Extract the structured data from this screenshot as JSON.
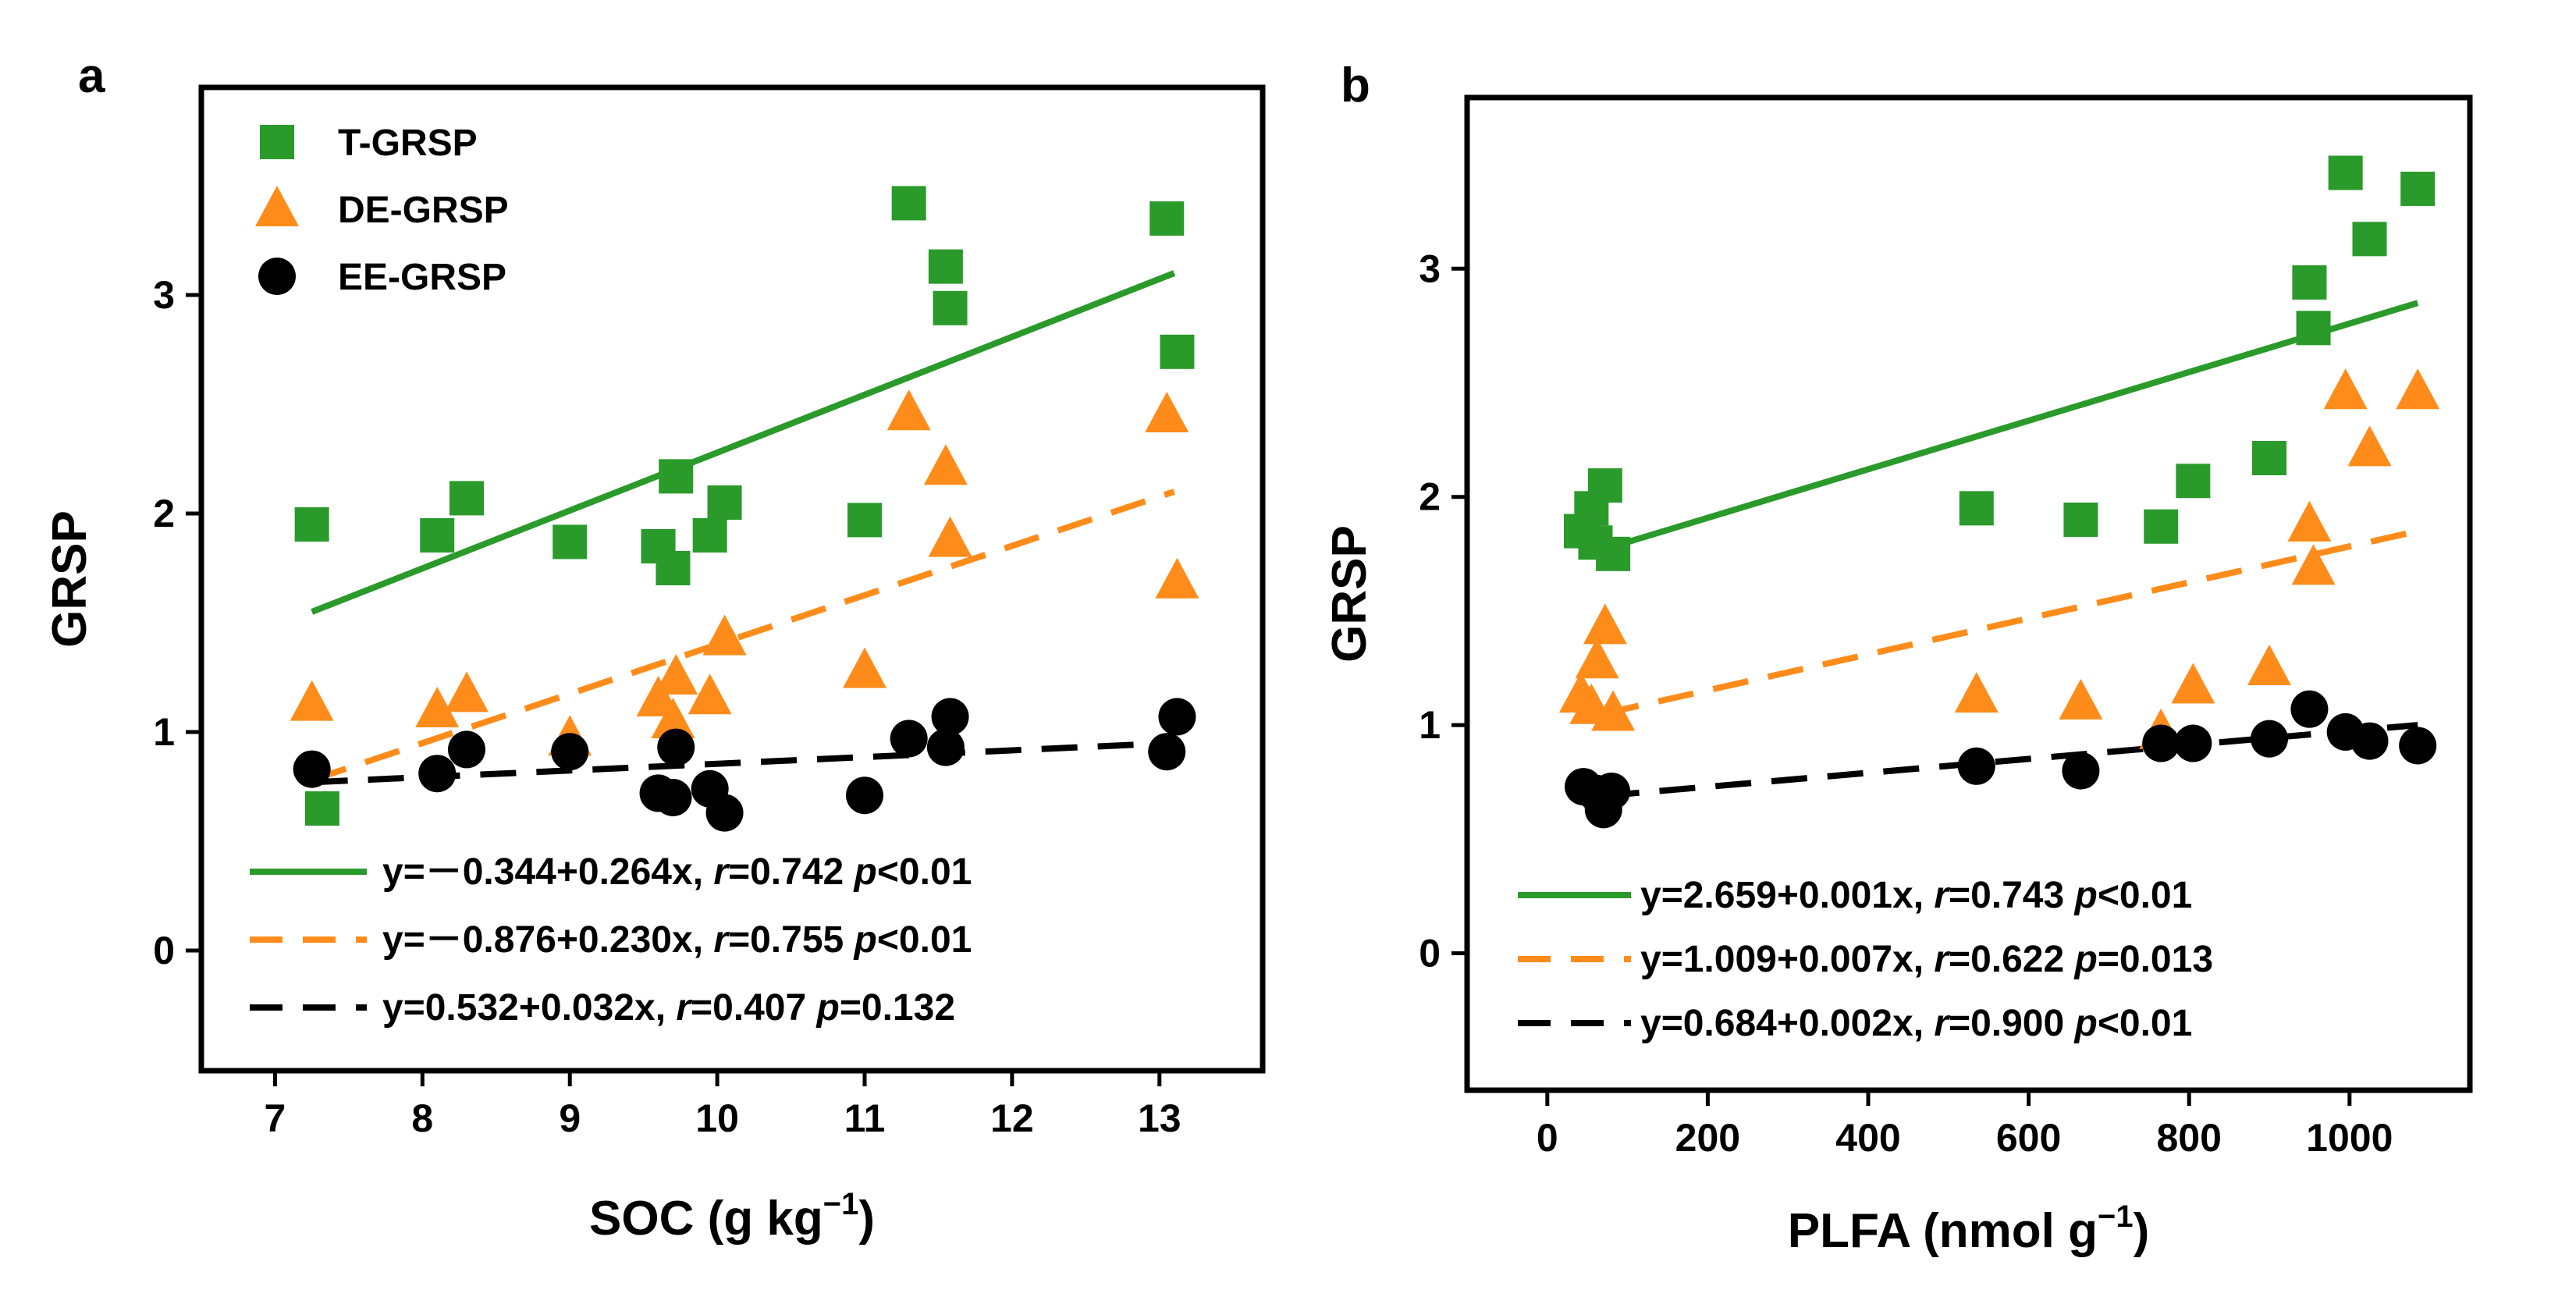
{
  "colors": {
    "t_grsp": "#2a9a2a",
    "de_grsp": "#ff8c1a",
    "ee_grsp": "#000000"
  },
  "chart_data": [
    {
      "panel": "a",
      "type": "scatter",
      "xlabel": "SOC (g kg",
      "xlabel_sup": "−1",
      "xlabel_close": ")",
      "ylabel": "GRSP",
      "xlim": [
        6.5,
        13.7
      ],
      "ylim": [
        -0.55,
        3.95
      ],
      "xticks": [
        7,
        8,
        9,
        10,
        11,
        12,
        13
      ],
      "yticks": [
        0,
        1,
        2,
        3
      ],
      "legend_position": "top-left",
      "series": [
        {
          "name": "T-GRSP",
          "marker": "square",
          "color_key": "t_grsp",
          "points": [
            [
              7.25,
              1.95
            ],
            [
              7.32,
              0.65
            ],
            [
              8.1,
              1.9
            ],
            [
              8.3,
              2.07
            ],
            [
              9.0,
              1.87
            ],
            [
              9.6,
              1.85
            ],
            [
              9.7,
              1.75
            ],
            [
              9.72,
              2.17
            ],
            [
              9.95,
              1.9
            ],
            [
              10.05,
              2.05
            ],
            [
              11.0,
              1.97
            ],
            [
              11.3,
              3.42
            ],
            [
              11.55,
              3.13
            ],
            [
              11.58,
              2.94
            ],
            [
              13.05,
              3.35
            ],
            [
              13.12,
              2.74
            ]
          ]
        },
        {
          "name": "DE-GRSP",
          "marker": "triangle",
          "color_key": "de_grsp",
          "points": [
            [
              7.25,
              1.13
            ],
            [
              8.1,
              1.1
            ],
            [
              8.3,
              1.17
            ],
            [
              9.0,
              0.97
            ],
            [
              9.6,
              1.15
            ],
            [
              9.7,
              1.05
            ],
            [
              9.72,
              1.25
            ],
            [
              9.95,
              1.16
            ],
            [
              10.05,
              1.43
            ],
            [
              11.0,
              1.28
            ],
            [
              11.3,
              2.46
            ],
            [
              11.55,
              2.21
            ],
            [
              11.58,
              1.88
            ],
            [
              13.05,
              2.45
            ],
            [
              13.12,
              1.69
            ]
          ]
        },
        {
          "name": "EE-GRSP",
          "marker": "circle",
          "color_key": "ee_grsp",
          "points": [
            [
              7.25,
              0.83
            ],
            [
              8.1,
              0.81
            ],
            [
              8.3,
              0.92
            ],
            [
              9.0,
              0.91
            ],
            [
              9.6,
              0.72
            ],
            [
              9.7,
              0.7
            ],
            [
              9.72,
              0.93
            ],
            [
              9.95,
              0.74
            ],
            [
              10.05,
              0.63
            ],
            [
              11.0,
              0.71
            ],
            [
              11.3,
              0.97
            ],
            [
              11.55,
              0.93
            ],
            [
              11.58,
              1.07
            ],
            [
              13.05,
              0.91
            ],
            [
              13.12,
              1.07
            ]
          ]
        }
      ],
      "fits": [
        {
          "color_key": "t_grsp",
          "style": "solid",
          "x": [
            7.25,
            13.1
          ],
          "y": [
            1.55,
            3.1
          ],
          "eq_a": "y=－0.344+0.264x, ",
          "eq_r": "r",
          "eq_b": "=0.742 ",
          "eq_p": "p",
          "eq_c": "<0.01"
        },
        {
          "color_key": "de_grsp",
          "style": "dashed",
          "x": [
            7.25,
            13.1
          ],
          "y": [
            0.78,
            2.1
          ],
          "eq_a": "y=－0.876+0.230x, ",
          "eq_r": "r",
          "eq_b": "=0.755 ",
          "eq_p": "p",
          "eq_c": "<0.01"
        },
        {
          "color_key": "ee_grsp",
          "style": "dashed",
          "x": [
            7.25,
            13.1
          ],
          "y": [
            0.77,
            0.95
          ],
          "eq_a": "y=0.532+0.032x, ",
          "eq_r": "r",
          "eq_b": "=0.407 ",
          "eq_p": "p",
          "eq_c": "=0.132"
        }
      ]
    },
    {
      "panel": "b",
      "type": "scatter",
      "xlabel": "PLFA (nmol g",
      "xlabel_sup": "−1",
      "xlabel_close": ")",
      "ylabel": "GRSP",
      "xlim": [
        -100,
        1150
      ],
      "ylim": [
        -0.6,
        3.75
      ],
      "xticks": [
        0,
        200,
        400,
        600,
        800,
        1000
      ],
      "yticks": [
        0,
        1,
        2,
        3
      ],
      "series": [
        {
          "name": "T-GRSP",
          "marker": "square",
          "color_key": "t_grsp",
          "points": [
            [
              42,
              1.85
            ],
            [
              55,
              1.95
            ],
            [
              60,
              1.8
            ],
            [
              72,
              2.05
            ],
            [
              82,
              1.75
            ],
            [
              535,
              1.95
            ],
            [
              665,
              1.9
            ],
            [
              765,
              1.87
            ],
            [
              805,
              2.07
            ],
            [
              900,
              2.17
            ],
            [
              950,
              2.94
            ],
            [
              955,
              2.74
            ],
            [
              995,
              3.42
            ],
            [
              1025,
              3.13
            ],
            [
              1085,
              3.35
            ]
          ]
        },
        {
          "name": "DE-GRSP",
          "marker": "triangle",
          "color_key": "de_grsp",
          "points": [
            [
              42,
              1.13
            ],
            [
              55,
              1.08
            ],
            [
              62,
              1.28
            ],
            [
              72,
              1.43
            ],
            [
              82,
              1.05
            ],
            [
              535,
              1.13
            ],
            [
              665,
              1.1
            ],
            [
              765,
              0.97
            ],
            [
              805,
              1.17
            ],
            [
              900,
              1.25
            ],
            [
              950,
              1.88
            ],
            [
              955,
              1.69
            ],
            [
              995,
              2.46
            ],
            [
              1025,
              2.21
            ],
            [
              1085,
              2.46
            ]
          ]
        },
        {
          "name": "EE-GRSP",
          "marker": "circle",
          "color_key": "ee_grsp",
          "points": [
            [
              45,
              0.73
            ],
            [
              62,
              0.7
            ],
            [
              70,
              0.63
            ],
            [
              80,
              0.71
            ],
            [
              535,
              0.82
            ],
            [
              665,
              0.8
            ],
            [
              765,
              0.92
            ],
            [
              805,
              0.92
            ],
            [
              900,
              0.94
            ],
            [
              950,
              1.07
            ],
            [
              995,
              0.97
            ],
            [
              1025,
              0.93
            ],
            [
              1085,
              0.91
            ]
          ]
        }
      ],
      "fits": [
        {
          "color_key": "t_grsp",
          "style": "solid",
          "x": [
            70,
            1085
          ],
          "y": [
            1.77,
            2.85
          ],
          "eq_a": "y=2.659+0.001x, ",
          "eq_r": "r",
          "eq_b": "=0.743 ",
          "eq_p": "p",
          "eq_c": "<0.01"
        },
        {
          "color_key": "de_grsp",
          "style": "dashed",
          "x": [
            70,
            1085
          ],
          "y": [
            1.05,
            1.85
          ],
          "eq_a": "y=1.009+0.007x, ",
          "eq_r": "r",
          "eq_b": "=0.622 ",
          "eq_p": "p",
          "eq_c": "=0.013"
        },
        {
          "color_key": "ee_grsp",
          "style": "dashed",
          "x": [
            70,
            1085
          ],
          "y": [
            0.69,
            1.0
          ],
          "eq_a": "y=0.684+0.002x, ",
          "eq_r": "r",
          "eq_b": "=0.900 ",
          "eq_p": "p",
          "eq_c": "<0.01"
        }
      ]
    }
  ]
}
